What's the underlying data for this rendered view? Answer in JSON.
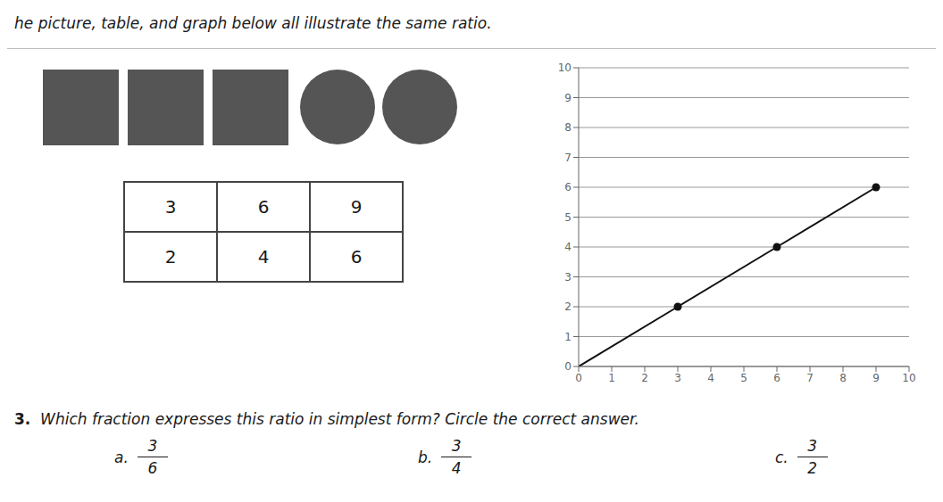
{
  "chart_data": {
    "type": "line",
    "title": "he picture, table, and graph below all illustrate the same ratio.",
    "x": [
      0,
      3,
      6,
      9
    ],
    "series": [
      {
        "type": "line",
        "color": "#111111",
        "values": [
          0,
          2,
          4,
          6
        ]
      },
      {
        "type": "scatter",
        "color": "#111111",
        "marker": "circle",
        "values": [
          null,
          2,
          4,
          6
        ]
      }
    ],
    "xlim": [
      0,
      10
    ],
    "ylim": [
      0,
      10
    ],
    "xticks": [
      0,
      1,
      2,
      3,
      4,
      5,
      6,
      7,
      8,
      9,
      10
    ],
    "yticks": [
      0,
      1,
      2,
      3,
      4,
      5,
      6,
      7,
      8,
      9,
      10
    ],
    "grid": "y",
    "picture": {
      "squares": 3,
      "circles": 2,
      "color": "#555555"
    },
    "table": [
      [
        "3",
        "6",
        "9"
      ],
      [
        "2",
        "4",
        "6"
      ]
    ],
    "annotations": [
      "3.",
      "  Which fraction expresses this ratio in simplest form? Circle the correct answer."
    ],
    "answers": [
      {
        "label": "a.",
        "numerator": 3,
        "denominator": 6
      },
      {
        "label": "b.",
        "numerator": 3,
        "denominator": 4
      },
      {
        "label": "c.",
        "numerator": 3,
        "denominator": 2
      }
    ]
  }
}
